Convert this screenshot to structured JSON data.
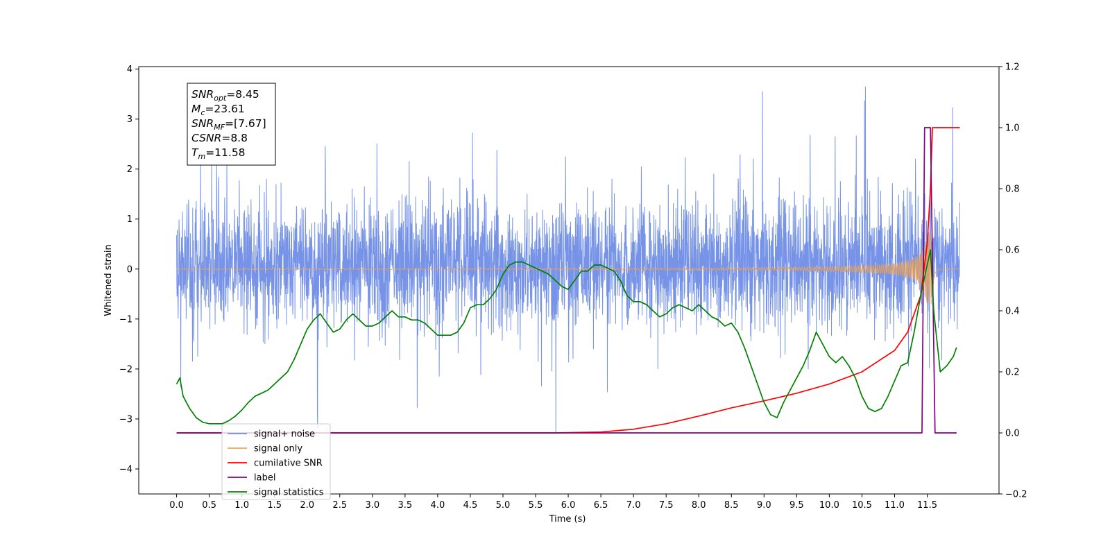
{
  "chart_data": {
    "type": "line",
    "xlabel": "Time (s)",
    "ylabel_left": "Whitened strain",
    "ylabel_right": "",
    "xlim": [
      -0.58,
      12.6
    ],
    "ylim_left": [
      -4.5,
      4.05
    ],
    "ylim_right": [
      -0.2,
      1.2
    ],
    "x_ticks": [
      "0.0",
      "0.5",
      "1.0",
      "1.5",
      "2.0",
      "2.5",
      "3.0",
      "3.5",
      "4.0",
      "4.5",
      "5.0",
      "5.5",
      "6.0",
      "6.5",
      "7.0",
      "7.5",
      "8.0",
      "8.5",
      "9.0",
      "9.5",
      "10.0",
      "10.5",
      "11.0",
      "11.5"
    ],
    "y_left_ticks": [
      "4",
      "3",
      "2",
      "1",
      "0",
      "−1",
      "−2",
      "−3",
      "−4"
    ],
    "y_right_ticks": [
      "1.2",
      "1.0",
      "0.8",
      "0.6",
      "0.4",
      "0.2",
      "0.0",
      "−0.2"
    ],
    "grid": false,
    "legend_position": "lower-left",
    "stats_box": {
      "lines": [
        {
          "symbol": "SNR",
          "sub": "opt",
          "value": "=8.45"
        },
        {
          "symbol": "M",
          "sub": "c",
          "value": "=23.61"
        },
        {
          "symbol": "SNR",
          "sub": "MF",
          "value": "=[7.67]"
        },
        {
          "symbol": "CSNR",
          "sub": "",
          "value": "=8.8"
        },
        {
          "symbol": "T",
          "sub": "m",
          "value": "=11.58"
        }
      ]
    },
    "series": [
      {
        "name": "signal+ noise",
        "axis": "left",
        "color": "#6f8de6",
        "noise_band": {
          "x_start": 0.0,
          "x_end": 12.0,
          "typical_range": [
            -1.7,
            2.1
          ],
          "peak_max": 3.65,
          "peak_min": -4.1
        }
      },
      {
        "name": "signal only",
        "axis": "left",
        "color": "#f5a34d",
        "chirp": {
          "x_start": 0.0,
          "x_end": 12.0,
          "merger_time": 11.58,
          "peak_amplitude": 0.7
        }
      },
      {
        "name": "cumilative SNR",
        "axis": "right",
        "color": "#ff0000",
        "x": [
          0.0,
          5.8,
          6.5,
          7.0,
          7.5,
          8.0,
          8.5,
          9.0,
          9.5,
          10.0,
          10.5,
          11.0,
          11.2,
          11.4,
          11.5,
          11.55,
          11.58,
          11.6,
          12.0
        ],
        "y": [
          0.0,
          0.0,
          0.003,
          0.012,
          0.03,
          0.055,
          0.082,
          0.105,
          0.13,
          0.16,
          0.2,
          0.27,
          0.33,
          0.45,
          0.62,
          0.8,
          1.0,
          1.0,
          1.0
        ]
      },
      {
        "name": "label",
        "axis": "right",
        "color": "#800080",
        "x": [
          0.0,
          11.42,
          11.46,
          11.55,
          11.62,
          11.64,
          11.95
        ],
        "y": [
          0.0,
          0.0,
          1.0,
          1.0,
          0.0,
          0.0,
          0.0
        ]
      },
      {
        "name": "signal only",
        "axis": "right",
        "color": "#d8d8d8",
        "hidden_behind_legend": true,
        "x": [
          0.0,
          12.0
        ],
        "y": [
          0.0,
          0.0
        ]
      },
      {
        "name": "signal statistics",
        "axis": "right",
        "color": "#008000",
        "x": [
          0.0,
          0.05,
          0.1,
          0.2,
          0.3,
          0.4,
          0.5,
          0.6,
          0.7,
          0.8,
          0.9,
          1.0,
          1.1,
          1.2,
          1.3,
          1.4,
          1.5,
          1.6,
          1.7,
          1.8,
          1.9,
          2.0,
          2.1,
          2.2,
          2.3,
          2.4,
          2.5,
          2.6,
          2.7,
          2.8,
          2.9,
          3.0,
          3.1,
          3.2,
          3.3,
          3.4,
          3.5,
          3.6,
          3.7,
          3.8,
          3.9,
          4.0,
          4.1,
          4.2,
          4.3,
          4.4,
          4.5,
          4.6,
          4.7,
          4.8,
          4.9,
          5.0,
          5.1,
          5.2,
          5.3,
          5.4,
          5.5,
          5.6,
          5.7,
          5.8,
          5.9,
          6.0,
          6.1,
          6.2,
          6.3,
          6.4,
          6.5,
          6.6,
          6.7,
          6.8,
          6.9,
          7.0,
          7.1,
          7.2,
          7.3,
          7.4,
          7.5,
          7.6,
          7.7,
          7.8,
          7.9,
          8.0,
          8.1,
          8.2,
          8.3,
          8.4,
          8.5,
          8.6,
          8.7,
          8.8,
          8.9,
          9.0,
          9.1,
          9.2,
          9.3,
          9.4,
          9.5,
          9.6,
          9.7,
          9.8,
          9.9,
          10.0,
          10.1,
          10.2,
          10.3,
          10.4,
          10.5,
          10.6,
          10.7,
          10.8,
          10.9,
          11.0,
          11.1,
          11.2,
          11.3,
          11.4,
          11.5,
          11.55,
          11.6,
          11.7,
          11.8,
          11.9,
          11.95
        ],
        "y": [
          0.16,
          0.18,
          0.12,
          0.08,
          0.05,
          0.035,
          0.03,
          0.03,
          0.03,
          0.04,
          0.055,
          0.075,
          0.1,
          0.12,
          0.13,
          0.14,
          0.16,
          0.18,
          0.2,
          0.24,
          0.29,
          0.34,
          0.37,
          0.39,
          0.36,
          0.33,
          0.34,
          0.37,
          0.39,
          0.37,
          0.35,
          0.35,
          0.36,
          0.38,
          0.4,
          0.38,
          0.38,
          0.37,
          0.37,
          0.36,
          0.34,
          0.32,
          0.32,
          0.32,
          0.33,
          0.36,
          0.41,
          0.42,
          0.42,
          0.44,
          0.47,
          0.52,
          0.55,
          0.56,
          0.56,
          0.55,
          0.54,
          0.53,
          0.52,
          0.5,
          0.48,
          0.47,
          0.5,
          0.53,
          0.53,
          0.55,
          0.55,
          0.54,
          0.53,
          0.5,
          0.45,
          0.43,
          0.43,
          0.42,
          0.4,
          0.38,
          0.39,
          0.41,
          0.42,
          0.41,
          0.4,
          0.42,
          0.4,
          0.38,
          0.37,
          0.35,
          0.36,
          0.33,
          0.28,
          0.22,
          0.16,
          0.1,
          0.06,
          0.05,
          0.1,
          0.14,
          0.18,
          0.22,
          0.27,
          0.33,
          0.29,
          0.25,
          0.23,
          0.25,
          0.22,
          0.18,
          0.12,
          0.08,
          0.07,
          0.08,
          0.12,
          0.17,
          0.22,
          0.23,
          0.33,
          0.45,
          0.55,
          0.6,
          0.4,
          0.2,
          0.22,
          0.25,
          0.28
        ]
      }
    ]
  }
}
